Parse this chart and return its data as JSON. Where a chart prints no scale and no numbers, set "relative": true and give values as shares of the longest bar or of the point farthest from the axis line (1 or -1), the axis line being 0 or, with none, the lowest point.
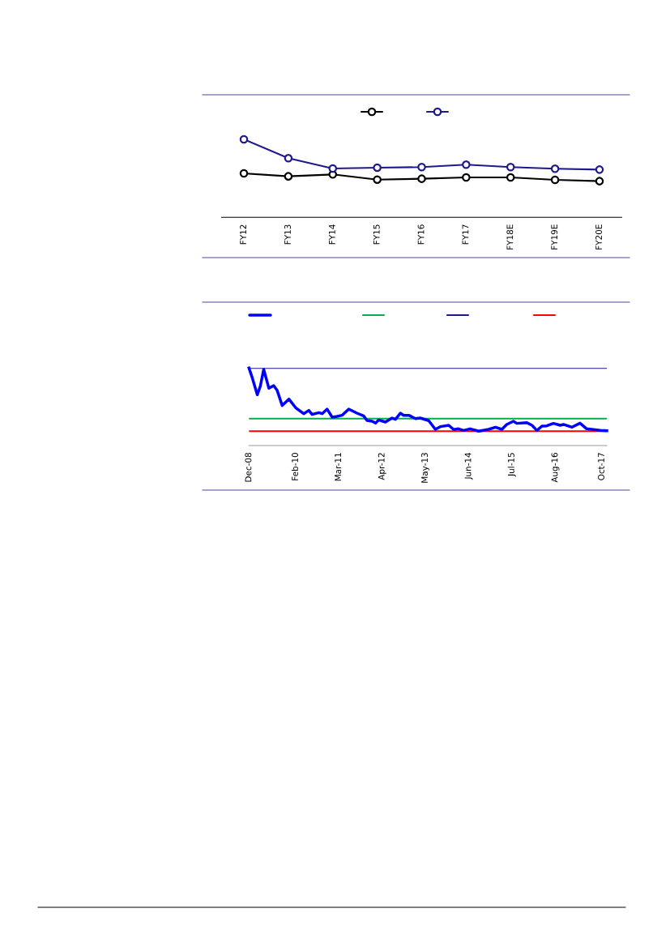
{
  "chart_data": [
    {
      "type": "line",
      "relative": true,
      "marker": "circle",
      "grid": false,
      "categories": [
        "FY12",
        "FY13",
        "FY14",
        "FY15",
        "FY16",
        "FY17",
        "FY18E",
        "FY19E",
        "FY20E"
      ],
      "series": [
        {
          "color": "#000000",
          "values": [
            0.564,
            0.526,
            0.55,
            0.484,
            0.495,
            0.512,
            0.512,
            0.481,
            0.464
          ]
        },
        {
          "color": "#1f1a8c",
          "values": [
            1.0,
            0.758,
            0.626,
            0.637,
            0.644,
            0.675,
            0.644,
            0.623,
            0.612
          ]
        }
      ]
    },
    {
      "type": "line",
      "relative": true,
      "marker": "none",
      "grid": false,
      "xlim": [
        "2008-12-01",
        "2017-11-15"
      ],
      "xticks": [
        {
          "value": "2008-12-01",
          "label": "Dec-08"
        },
        {
          "value": "2010-02-01",
          "label": "Feb-10"
        },
        {
          "value": "2011-03-01",
          "label": "Mar-11"
        },
        {
          "value": "2012-04-01",
          "label": "Apr-12"
        },
        {
          "value": "2013-05-01",
          "label": "May-13"
        },
        {
          "value": "2014-06-01",
          "label": "Jun-14"
        },
        {
          "value": "2015-07-01",
          "label": "Jul-15"
        },
        {
          "value": "2016-08-01",
          "label": "Aug-16"
        },
        {
          "value": "2017-10-01",
          "label": "Oct-17"
        }
      ],
      "series": [
        {
          "color": "#0000ff",
          "x": [
            "2008-12-01",
            "2009-01-01",
            "2009-02-15",
            "2009-03-15",
            "2009-04-15",
            "2009-06-01",
            "2009-07-15",
            "2009-08-15",
            "2009-10-01",
            "2009-12-01",
            "2010-02-01",
            "2010-04-15",
            "2010-06-01",
            "2010-07-01",
            "2010-09-01",
            "2010-10-01",
            "2010-11-15",
            "2011-01-01",
            "2011-02-15",
            "2011-04-01",
            "2011-06-01",
            "2011-08-15",
            "2011-10-15",
            "2011-11-15",
            "2012-01-01",
            "2012-02-01",
            "2012-03-01",
            "2012-05-01",
            "2012-07-01",
            "2012-08-01",
            "2012-09-15",
            "2012-10-15",
            "2012-12-01",
            "2013-02-01",
            "2013-03-15",
            "2013-06-01",
            "2013-08-01",
            "2013-09-15",
            "2013-12-01",
            "2014-01-15",
            "2014-03-01",
            "2014-04-15",
            "2014-06-15",
            "2014-09-01",
            "2014-12-01",
            "2015-02-01",
            "2015-04-01",
            "2015-05-15",
            "2015-07-15",
            "2015-08-15",
            "2015-11-15",
            "2016-01-01",
            "2016-02-15",
            "2016-04-01",
            "2016-05-15",
            "2016-07-15",
            "2016-09-15",
            "2016-10-15",
            "2017-01-01",
            "2017-03-15",
            "2017-05-15",
            "2017-07-01",
            "2017-09-15",
            "2017-11-15"
          ],
          "values": [
            1.0,
            0.871,
            0.655,
            0.767,
            0.983,
            0.739,
            0.774,
            0.714,
            0.516,
            0.599,
            0.488,
            0.411,
            0.453,
            0.401,
            0.425,
            0.411,
            0.47,
            0.366,
            0.376,
            0.39,
            0.47,
            0.418,
            0.383,
            0.324,
            0.314,
            0.289,
            0.331,
            0.303,
            0.355,
            0.338,
            0.418,
            0.39,
            0.39,
            0.348,
            0.355,
            0.321,
            0.209,
            0.244,
            0.261,
            0.206,
            0.216,
            0.195,
            0.216,
            0.185,
            0.209,
            0.237,
            0.209,
            0.272,
            0.314,
            0.286,
            0.296,
            0.261,
            0.195,
            0.251,
            0.254,
            0.286,
            0.261,
            0.272,
            0.237,
            0.289,
            0.216,
            0.209,
            0.195,
            0.192
          ]
        }
      ],
      "ref_lines": [
        {
          "axis": "y",
          "value": 0.348,
          "color": "#00b050"
        },
        {
          "axis": "y",
          "value": 1.0,
          "color": "#1a1a8c"
        },
        {
          "axis": "y",
          "value": 0.185,
          "color": "#ff0000"
        }
      ]
    }
  ]
}
